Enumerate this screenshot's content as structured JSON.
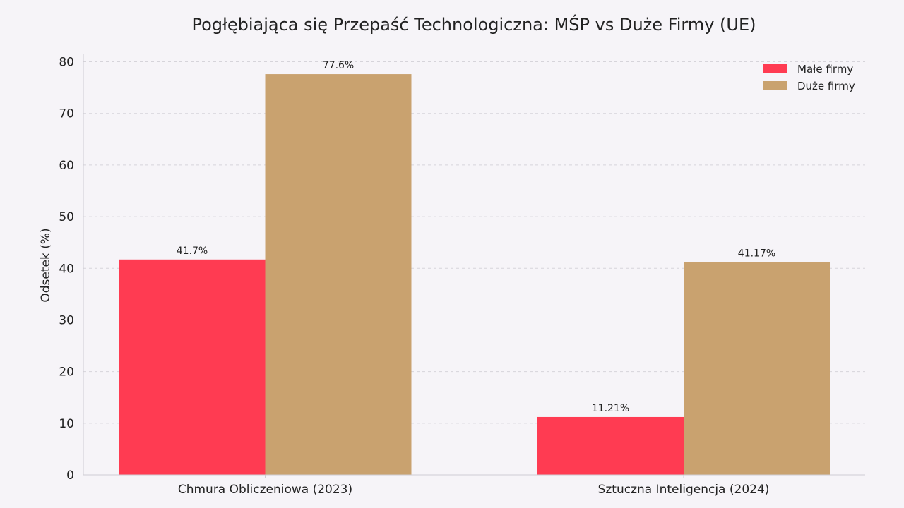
{
  "chart_data": {
    "type": "bar",
    "title": "Pogłębiająca się Przepaść Technologiczna: MŚP vs Duże Firmy (UE)",
    "xlabel": "",
    "ylabel": "Odsetek (%)",
    "ylim": [
      0,
      80
    ],
    "yticks": [
      "0",
      "10",
      "20",
      "30",
      "40",
      "50",
      "60",
      "70",
      "80"
    ],
    "grid": true,
    "legend_position": "top-right",
    "categories": [
      "Chmura Obliczeniowa (2023)",
      "Sztuczna Inteligencja (2024)"
    ],
    "series": [
      {
        "name": "Małe firmy",
        "color": "#ff3b52",
        "values": [
          41.7,
          11.21
        ],
        "labels": [
          "41.7%",
          "11.21%"
        ]
      },
      {
        "name": "Duże firmy",
        "color": "#c9a26f",
        "values": [
          77.6,
          41.17
        ],
        "labels": [
          "77.6%",
          "41.17%"
        ]
      }
    ]
  }
}
